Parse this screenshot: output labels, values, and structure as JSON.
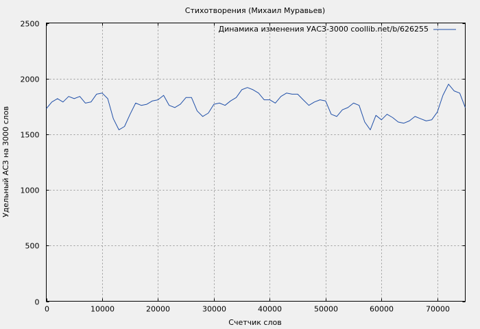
{
  "chart_data": {
    "type": "line",
    "title": "Стихотворения (Михаил Муравьев)",
    "xlabel": "Счетчик слов",
    "ylabel": "Удельный АСЗ на 3000 слов",
    "xlim": [
      0,
      75000
    ],
    "ylim": [
      0,
      2500
    ],
    "xticks": [
      0,
      10000,
      20000,
      30000,
      40000,
      50000,
      60000,
      70000
    ],
    "yticks": [
      0,
      500,
      1000,
      1500,
      2000,
      2500
    ],
    "grid": true,
    "legend_position": "top-right",
    "colors": {
      "line": "#1f4fa8",
      "grid": "#999999",
      "background": "#f0f0f0"
    },
    "series": [
      {
        "name": "Динамика изменения УАСЗ-3000 coollib.net/b/626255",
        "x": [
          0,
          1000,
          2000,
          3000,
          4000,
          5000,
          6000,
          7000,
          8000,
          9000,
          10000,
          11000,
          12000,
          13000,
          14000,
          15000,
          16000,
          17000,
          18000,
          19000,
          20000,
          21000,
          22000,
          23000,
          24000,
          25000,
          26000,
          27000,
          28000,
          29000,
          30000,
          31000,
          32000,
          33000,
          34000,
          35000,
          36000,
          37000,
          38000,
          39000,
          40000,
          41000,
          42000,
          43000,
          44000,
          45000,
          46000,
          47000,
          48000,
          49000,
          50000,
          51000,
          52000,
          53000,
          54000,
          55000,
          56000,
          57000,
          58000,
          59000,
          60000,
          61000,
          62000,
          63000,
          64000,
          65000,
          66000,
          67000,
          68000,
          69000,
          70000,
          71000,
          72000,
          73000,
          74000,
          75000
        ],
        "values": [
          1730,
          1790,
          1820,
          1790,
          1840,
          1820,
          1840,
          1780,
          1790,
          1860,
          1870,
          1820,
          1640,
          1540,
          1570,
          1680,
          1780,
          1760,
          1770,
          1800,
          1810,
          1850,
          1760,
          1740,
          1770,
          1830,
          1830,
          1710,
          1660,
          1690,
          1770,
          1780,
          1760,
          1800,
          1830,
          1900,
          1920,
          1900,
          1870,
          1810,
          1810,
          1780,
          1840,
          1870,
          1860,
          1860,
          1810,
          1760,
          1790,
          1810,
          1800,
          1680,
          1660,
          1720,
          1740,
          1780,
          1760,
          1610,
          1540,
          1670,
          1630,
          1680,
          1650,
          1610,
          1600,
          1620,
          1660,
          1640,
          1620,
          1630,
          1700,
          1850,
          1950,
          1890,
          1870,
          1740
        ]
      }
    ]
  }
}
